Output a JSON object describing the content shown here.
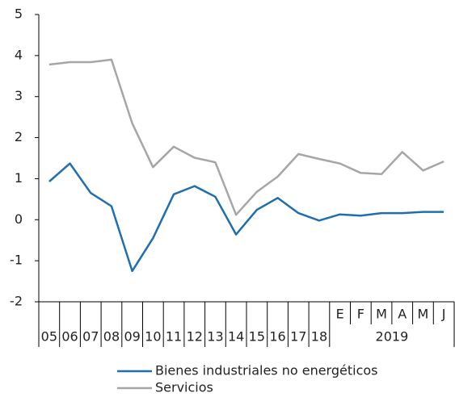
{
  "chart_data": {
    "type": "line",
    "categories": [
      "05",
      "06",
      "07",
      "08",
      "09",
      "10",
      "11",
      "12",
      "13",
      "14",
      "15",
      "16",
      "17",
      "18",
      "E",
      "F",
      "M",
      "A",
      "M",
      "J"
    ],
    "category_groups": [
      {
        "label": "2019",
        "from": 14,
        "to": 19
      }
    ],
    "series": [
      {
        "name": "Bienes industriales no energéticos",
        "color": "#1f6fb0",
        "values": [
          0.93,
          1.37,
          0.65,
          0.33,
          -1.25,
          -0.45,
          0.62,
          0.82,
          0.56,
          -0.36,
          0.24,
          0.53,
          0.16,
          -0.02,
          0.13,
          0.1,
          0.16,
          0.16,
          0.19,
          0.19
        ]
      },
      {
        "name": "Servicios",
        "color": "#a6a6a6",
        "values": [
          3.78,
          3.84,
          3.84,
          3.9,
          2.35,
          1.28,
          1.78,
          1.51,
          1.4,
          0.12,
          0.68,
          1.05,
          1.6,
          1.48,
          1.37,
          1.14,
          1.11,
          1.65,
          1.2,
          1.42
        ]
      }
    ],
    "ylim": [
      -2,
      5
    ],
    "yticks": [
      -2,
      -1,
      0,
      1,
      2,
      3,
      4,
      5
    ],
    "legend": "bottom"
  }
}
